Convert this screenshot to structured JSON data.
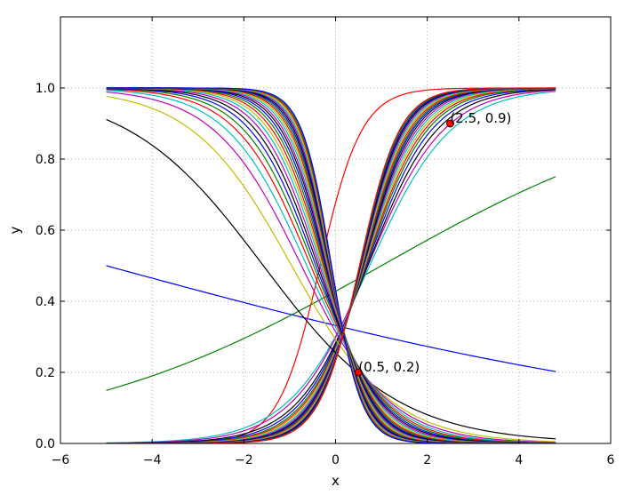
{
  "chart_data": {
    "type": "line",
    "title": "",
    "xlabel": "x",
    "ylabel": "y",
    "xlim": [
      -6,
      6
    ],
    "ylim": [
      0,
      1.2
    ],
    "xticks": [
      -6,
      -4,
      -2,
      0,
      2,
      4,
      6
    ],
    "yticks": [
      0.0,
      0.2,
      0.4,
      0.6,
      0.8,
      1.0
    ],
    "xtick_labels": [
      "−6",
      "−4",
      "−2",
      "0",
      "2",
      "4",
      "6"
    ],
    "ytick_labels": [
      "0.0",
      "0.2",
      "0.4",
      "0.6",
      "0.8",
      "1.0"
    ],
    "grid": true,
    "x_range": [
      -5,
      4.8
    ],
    "curve_model": "y = 1 / (1 + exp(-(w*x + b)))",
    "series": [
      {
        "w": -0.14,
        "b": -0.7,
        "color": "#0000ff"
      },
      {
        "w": 0.29,
        "b": -0.29,
        "color": "#008000"
      },
      {
        "w": 2.2,
        "b": 0.74,
        "color": "#ff0000"
      },
      {
        "w": 1.13,
        "b": -0.84,
        "color": "#00bfbf"
      },
      {
        "w": 1.22,
        "b": -0.86,
        "color": "#bf00bf"
      },
      {
        "w": 1.33,
        "b": -0.93,
        "color": "#000000"
      },
      {
        "w": 1.42,
        "b": -0.96,
        "color": "#0000ff"
      },
      {
        "w": 1.5,
        "b": -0.99,
        "color": "#008000"
      },
      {
        "w": 1.56,
        "b": -1.01,
        "color": "#ff0000"
      },
      {
        "w": 1.62,
        "b": -1.03,
        "color": "#bfbf00"
      },
      {
        "w": 1.68,
        "b": -1.05,
        "color": "#00bfbf"
      },
      {
        "w": 1.74,
        "b": -1.07,
        "color": "#bf00bf"
      },
      {
        "w": 1.8,
        "b": -1.09,
        "color": "#000000"
      },
      {
        "w": 1.85,
        "b": -1.1,
        "color": "#0000ff"
      },
      {
        "w": 1.9,
        "b": -1.12,
        "color": "#008000"
      },
      {
        "w": 1.95,
        "b": -1.13,
        "color": "#ff0000"
      },
      {
        "w": -0.68,
        "b": -1.07,
        "color": "#000000"
      },
      {
        "w": -0.92,
        "b": -0.88,
        "color": "#bfbf00"
      },
      {
        "w": -1.05,
        "b": -0.78,
        "color": "#bf00bf"
      },
      {
        "w": -1.15,
        "b": -0.72,
        "color": "#00bfbf"
      },
      {
        "w": -1.24,
        "b": -0.67,
        "color": "#ff0000"
      },
      {
        "w": -1.32,
        "b": -0.63,
        "color": "#008000"
      },
      {
        "w": -1.4,
        "b": -0.6,
        "color": "#0000ff"
      },
      {
        "w": -1.48,
        "b": -0.57,
        "color": "#000000"
      },
      {
        "w": -1.56,
        "b": -0.54,
        "color": "#bf00bf"
      },
      {
        "w": -1.64,
        "b": -0.51,
        "color": "#00bfbf"
      },
      {
        "w": -1.72,
        "b": -0.49,
        "color": "#bfbf00"
      },
      {
        "w": -1.8,
        "b": -0.47,
        "color": "#ff0000"
      },
      {
        "w": -1.88,
        "b": -0.45,
        "color": "#008000"
      },
      {
        "w": -1.96,
        "b": -0.43,
        "color": "#0000ff"
      },
      {
        "w": -2.04,
        "b": -0.41,
        "color": "#000000"
      },
      {
        "w": -2.12,
        "b": -0.4,
        "color": "#bf00bf"
      },
      {
        "w": -2.2,
        "b": -0.38,
        "color": "#00bfbf"
      },
      {
        "w": -2.28,
        "b": -0.37,
        "color": "#bfbf00"
      },
      {
        "w": -2.36,
        "b": -0.36,
        "color": "#ff0000"
      },
      {
        "w": -2.44,
        "b": -0.35,
        "color": "#008000"
      },
      {
        "w": -2.52,
        "b": -0.34,
        "color": "#0000ff"
      },
      {
        "w": -2.6,
        "b": -0.33,
        "color": "#000000"
      },
      {
        "w": -2.68,
        "b": -0.32,
        "color": "#bf00bf"
      },
      {
        "w": -2.76,
        "b": -0.31,
        "color": "#00bfbf"
      },
      {
        "w": -2.84,
        "b": -0.3,
        "color": "#bfbf00"
      },
      {
        "w": -2.92,
        "b": -0.29,
        "color": "#ff0000"
      },
      {
        "w": -3.0,
        "b": -0.28,
        "color": "#008000"
      },
      {
        "w": -3.08,
        "b": -0.27,
        "color": "#0000ff"
      },
      {
        "w": 2.0,
        "b": -1.14,
        "color": "#bfbf00"
      },
      {
        "w": 2.05,
        "b": -1.15,
        "color": "#00bfbf"
      },
      {
        "w": 2.1,
        "b": -1.16,
        "color": "#bf00bf"
      },
      {
        "w": 2.15,
        "b": -1.17,
        "color": "#000000"
      },
      {
        "w": 2.2,
        "b": -1.18,
        "color": "#0000ff"
      },
      {
        "w": 2.25,
        "b": -1.19,
        "color": "#008000"
      },
      {
        "w": 2.3,
        "b": -1.2,
        "color": "#ff0000"
      }
    ],
    "points": [
      {
        "x": 2.5,
        "y": 0.9,
        "label": "(2.5, 0.9)",
        "color": "#ff0000"
      },
      {
        "x": 0.5,
        "y": 0.2,
        "label": "(0.5, 0.2)",
        "color": "#ff0000"
      }
    ]
  }
}
